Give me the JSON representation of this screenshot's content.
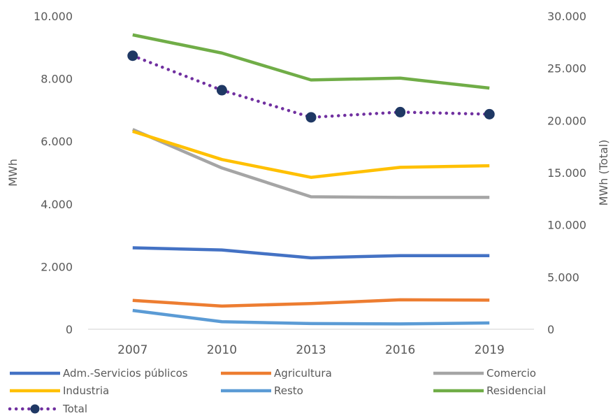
{
  "chart_data": {
    "type": "line",
    "categories": [
      "2007",
      "2010",
      "2013",
      "2016",
      "2019"
    ],
    "ylabel_left": "MWh",
    "ylabel_right": "MWh (Total)",
    "ylim_left": [
      0,
      10000
    ],
    "ylim_right": [
      0,
      30000
    ],
    "yticks_left": [
      "0",
      "2.000",
      "4.000",
      "6.000",
      "8.000",
      "10.000"
    ],
    "yticks_right": [
      "0",
      "5.000",
      "10.000",
      "15.000",
      "20.000",
      "25.000",
      "30.000"
    ],
    "grid": false,
    "legend_position": "bottom",
    "series": [
      {
        "name": "Adm.-Servicios públicos",
        "axis": "left",
        "color": "#4472C4",
        "style": "solid",
        "values": [
          2600,
          2530,
          2280,
          2350,
          2350
        ]
      },
      {
        "name": "Agricultura",
        "axis": "left",
        "color": "#ED7D31",
        "style": "solid",
        "values": [
          920,
          740,
          820,
          940,
          930
        ]
      },
      {
        "name": "Comercio",
        "axis": "left",
        "color": "#A5A5A5",
        "style": "solid",
        "values": [
          6380,
          5150,
          4230,
          4210,
          4210
        ]
      },
      {
        "name": "Industria",
        "axis": "left",
        "color": "#FFC000",
        "style": "solid",
        "values": [
          6320,
          5420,
          4850,
          5170,
          5220
        ]
      },
      {
        "name": "Resto",
        "axis": "left",
        "color": "#5B9BD5",
        "style": "solid",
        "values": [
          600,
          240,
          180,
          170,
          200
        ]
      },
      {
        "name": "Residencial",
        "axis": "left",
        "color": "#70AD47",
        "style": "solid",
        "values": [
          9400,
          8820,
          7960,
          8020,
          7700
        ]
      },
      {
        "name": "Total",
        "axis": "right",
        "color": "#7030A0",
        "marker_color": "#1F3864",
        "style": "dotted",
        "values": [
          26200,
          22900,
          20300,
          20800,
          20600
        ]
      }
    ]
  }
}
